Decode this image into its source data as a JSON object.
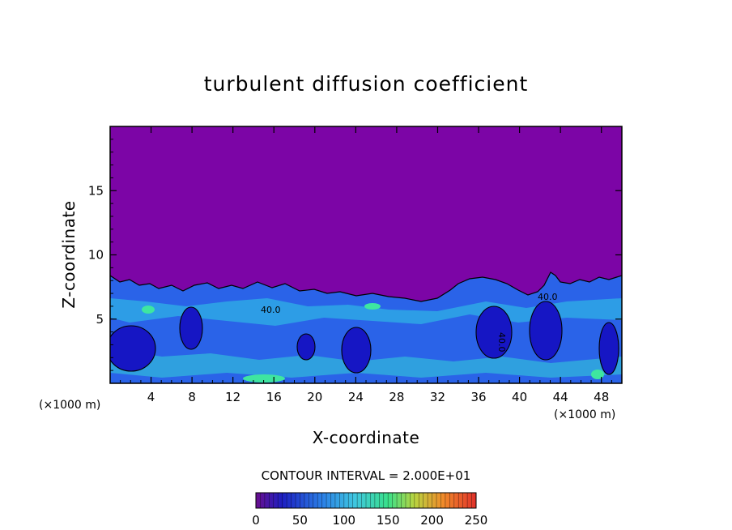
{
  "chart_data": {
    "type": "heatmap",
    "title": "turbulent diffusion coefficient",
    "xlabel": "X-coordinate",
    "ylabel": "Z-coordinate",
    "x_unit_left": "(×1000 m)",
    "x_unit_right": "(×1000 m)",
    "xlim": [
      0,
      50
    ],
    "ylim": [
      0,
      20
    ],
    "x_ticks": [
      4,
      8,
      12,
      16,
      20,
      24,
      28,
      32,
      36,
      40,
      44,
      48
    ],
    "x_tick_labels": [
      "4",
      "8",
      "12",
      "16",
      "20",
      "24",
      "28",
      "32",
      "36",
      "40",
      "44",
      "48"
    ],
    "y_ticks": [
      5,
      10,
      15
    ],
    "y_tick_labels": [
      "5",
      "10",
      "15"
    ],
    "contour_interval_text": "CONTOUR INTERVAL = 2.000E+01",
    "contour_labels": [
      "40.0",
      "40.0",
      "40.0"
    ],
    "colorbar": {
      "range": [
        0,
        250
      ],
      "ticks": [
        0,
        50,
        100,
        150,
        200,
        250
      ],
      "tick_labels": [
        "0",
        "50",
        "100",
        "150",
        "200",
        "250"
      ]
    },
    "field_description": {
      "background_value": 0,
      "turbulent_layer_top_approx": 7
    }
  }
}
